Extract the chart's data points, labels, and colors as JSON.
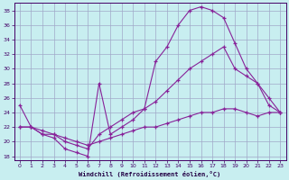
{
  "xlabel": "Windchill (Refroidissement éolien,°C)",
  "bg_color": "#c8eef0",
  "line_color": "#882299",
  "grid_color": "#a0a8c8",
  "xlim": [
    -0.5,
    23.5
  ],
  "ylim": [
    17.5,
    39
  ],
  "yticks": [
    18,
    20,
    22,
    24,
    26,
    28,
    30,
    32,
    34,
    36,
    38
  ],
  "xticks": [
    0,
    1,
    2,
    3,
    4,
    5,
    6,
    7,
    8,
    9,
    10,
    11,
    12,
    13,
    14,
    15,
    16,
    17,
    18,
    19,
    20,
    21,
    22,
    23
  ],
  "series1_x": [
    0,
    1,
    2,
    3,
    4,
    5,
    6,
    7,
    8,
    9,
    10,
    11,
    12,
    13,
    14,
    15,
    16,
    17,
    18,
    19,
    20,
    21,
    22,
    23
  ],
  "series1_y": [
    25,
    22,
    21,
    20.5,
    19,
    18.5,
    18,
    28,
    21,
    22,
    23,
    24.5,
    31,
    33,
    36,
    38,
    38.5,
    38,
    37,
    33.5,
    30,
    28,
    25,
    24
  ],
  "series2_x": [
    0,
    1,
    2,
    3,
    4,
    5,
    6,
    7,
    8,
    9,
    10,
    11,
    12,
    13,
    14,
    15,
    16,
    17,
    18,
    19,
    20,
    21,
    22,
    23
  ],
  "series2_y": [
    22,
    22,
    21,
    21,
    20,
    19.5,
    19,
    21,
    22,
    23,
    24,
    24.5,
    25.5,
    27,
    28.5,
    30,
    31,
    32,
    33,
    30,
    29,
    28,
    26,
    24
  ],
  "series3_x": [
    0,
    1,
    2,
    3,
    4,
    5,
    6,
    7,
    8,
    9,
    10,
    11,
    12,
    13,
    14,
    15,
    16,
    17,
    18,
    19,
    20,
    21,
    22,
    23
  ],
  "series3_y": [
    22,
    22,
    21.5,
    21,
    20.5,
    20,
    19.5,
    20,
    20.5,
    21,
    21.5,
    22,
    22,
    22.5,
    23,
    23.5,
    24,
    24,
    24.5,
    24.5,
    24,
    23.5,
    24,
    24
  ]
}
